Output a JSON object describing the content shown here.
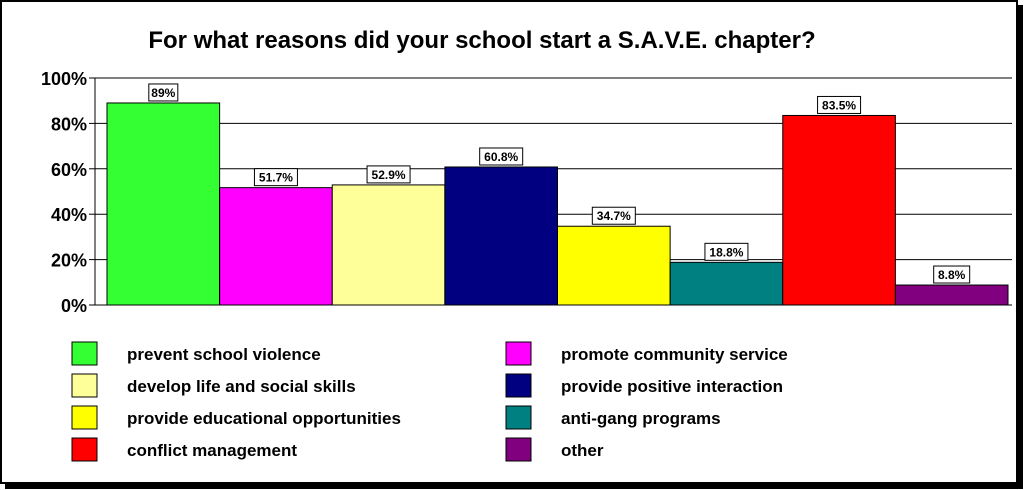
{
  "chart_data": {
    "type": "bar",
    "title": "For what reasons did your school start a S.A.V.E. chapter?",
    "xlabel": "",
    "ylabel": "",
    "ylim": [
      0,
      100
    ],
    "yticks": [
      0,
      20,
      40,
      60,
      80,
      100
    ],
    "ytick_labels": [
      "0%",
      "20%",
      "40%",
      "60%",
      "80%",
      "100%"
    ],
    "grid": true,
    "legend_position": "bottom",
    "series": [
      {
        "name": "prevent school violence",
        "value": 89,
        "label": "89%",
        "color": "#33ff33"
      },
      {
        "name": "promote community service",
        "value": 51.7,
        "label": "51.7%",
        "color": "#ff00ff"
      },
      {
        "name": "develop life and social skills",
        "value": 52.9,
        "label": "52.9%",
        "color": "#ffff99"
      },
      {
        "name": "provide positive interaction",
        "value": 60.8,
        "label": "60.8%",
        "color": "#000080"
      },
      {
        "name": "provide educational opportunities",
        "value": 34.7,
        "label": "34.7%",
        "color": "#ffff00"
      },
      {
        "name": "anti-gang programs",
        "value": 18.8,
        "label": "18.8%",
        "color": "#008080"
      },
      {
        "name": "conflict management",
        "value": 83.5,
        "label": "83.5%",
        "color": "#ff0000"
      },
      {
        "name": "other",
        "value": 8.8,
        "label": "8.8%",
        "color": "#800080"
      }
    ]
  }
}
